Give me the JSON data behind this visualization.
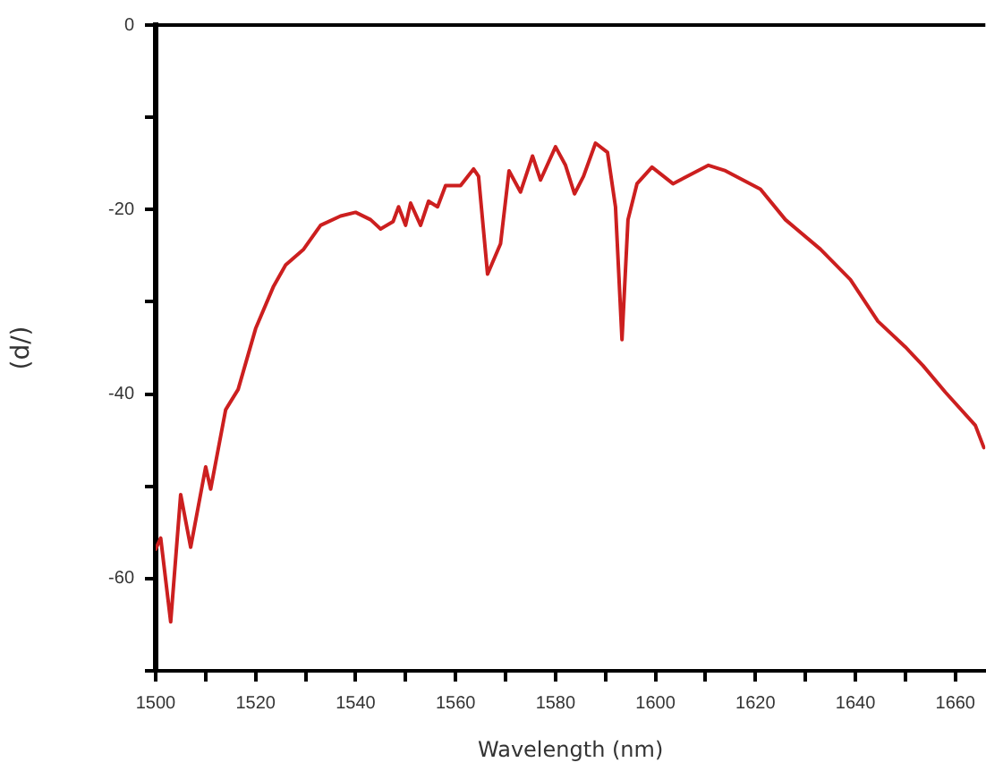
{
  "chart_data": {
    "type": "line",
    "xlabel": "Wavelength (nm)",
    "ylabel": "(d/)",
    "xlim": [
      1500,
      1666
    ],
    "ylim": [
      -70,
      0
    ],
    "xticks": [
      1500,
      {
        "value": 1510,
        "label": null
      },
      1520,
      {
        "value": 1530,
        "label": null
      },
      1540,
      {
        "value": 1550,
        "label": null
      },
      1560,
      {
        "value": 1570,
        "label": null
      },
      1580,
      {
        "value": 1590,
        "label": null
      },
      1600,
      {
        "value": 1610,
        "label": null
      },
      1620,
      {
        "value": 1630,
        "label": null
      },
      1640,
      {
        "value": 1650,
        "label": null
      },
      1660
    ],
    "yticks": [
      {
        "value": -70,
        "label": null
      },
      -60,
      {
        "value": -50,
        "label": null
      },
      -40,
      {
        "value": -30,
        "label": null
      },
      -20,
      {
        "value": -10,
        "label": null
      },
      0
    ],
    "grid": false,
    "legend": false,
    "marker": "none",
    "line_style": "solid",
    "series": [
      {
        "color": "#cc1f1f",
        "x": [
          1500,
          1501,
          1503,
          1505,
          1507,
          1510,
          1511,
          1514,
          1516.5,
          1520,
          1523.6,
          1526,
          1529.6,
          1533,
          1537,
          1540,
          1543,
          1545,
          1547.5,
          1548.6,
          1550,
          1551,
          1553,
          1554.6,
          1556.4,
          1558,
          1561,
          1563.6,
          1564.6,
          1566.4,
          1569,
          1570.7,
          1573,
          1575.4,
          1577,
          1580,
          1582,
          1583.8,
          1585.6,
          1588,
          1590.4,
          1592,
          1593.3,
          1594.5,
          1596.3,
          1599.3,
          1603.5,
          1610.6,
          1614,
          1621,
          1626,
          1633,
          1639,
          1644.5,
          1650,
          1653.5,
          1658,
          1664,
          1665.7
        ],
        "values": [
          -56.8,
          -55.6,
          -64.7,
          -50.9,
          -56.6,
          -47.9,
          -50.3,
          -41.7,
          -39.5,
          -32.9,
          -28.3,
          -26,
          -24.3,
          -21.7,
          -20.7,
          -20.3,
          -21.1,
          -22.1,
          -21.3,
          -19.7,
          -21.7,
          -19.3,
          -21.7,
          -19.1,
          -19.7,
          -17.4,
          -17.4,
          -15.6,
          -16.4,
          -27,
          -23.7,
          -15.8,
          -18.1,
          -14.2,
          -16.8,
          -13.2,
          -15.2,
          -18.3,
          -16.4,
          -12.8,
          -13.8,
          -19.7,
          -34.1,
          -21.1,
          -17.2,
          -15.4,
          -17.2,
          -15.2,
          -15.8,
          -17.8,
          -21.1,
          -24.3,
          -27.6,
          -32.1,
          -34.9,
          -36.9,
          -39.8,
          -43.4,
          -45.8
        ]
      }
    ]
  }
}
